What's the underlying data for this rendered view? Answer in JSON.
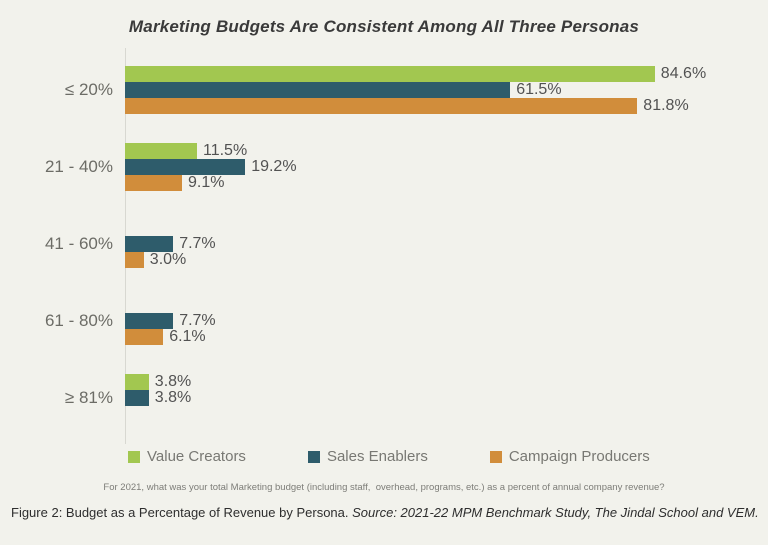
{
  "chart_data": {
    "type": "bar",
    "orientation": "horizontal",
    "title": "Marketing Budgets Are Consistent Among All Three Personas",
    "categories": [
      "≤ 20%",
      "21 - 40%",
      "41 - 60%",
      "61 - 80%",
      "≥ 81%"
    ],
    "series": [
      {
        "name": "Value Creators",
        "color": "#a2c750",
        "values": [
          84.6,
          11.5,
          0,
          0,
          3.8
        ]
      },
      {
        "name": "Sales Enablers",
        "color": "#2e5c6b",
        "values": [
          61.5,
          19.2,
          7.7,
          7.7,
          3.8
        ]
      },
      {
        "name": "Campaign Producers",
        "color": "#d18d3b",
        "values": [
          81.8,
          9.1,
          3.0,
          6.1,
          0
        ]
      }
    ],
    "value_suffix": "%",
    "value_decimals": 1,
    "xlim": [
      0,
      99
    ],
    "grid": false,
    "data_labels": true,
    "legend_position": "bottom",
    "zero_renders_no_bar": true
  },
  "footnote": "For 2021, what was your total Marketing budget (including staff,  overhead, programs, etc.) as a percent of annual company revenue?",
  "caption": {
    "text": "Figure 2: Budget as a Percentage of Revenue by Persona.",
    "source": "Source: 2021-22 MPM Benchmark Study, The Jindal School and VEM."
  },
  "colors": {
    "background": "#f2f2ec",
    "axis_line": "#d8d8d1",
    "title_text": "#3a3a3a",
    "category_text": "#6c6c66",
    "value_text": "#525252",
    "legend_text": "#787873",
    "footnote_text": "#7d7d78",
    "caption_text": "#2e2e2e"
  }
}
